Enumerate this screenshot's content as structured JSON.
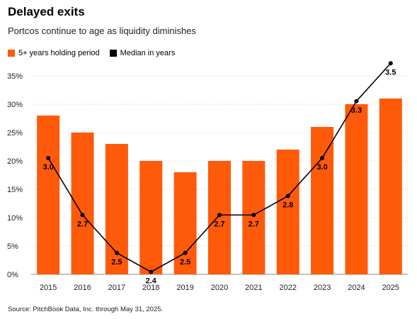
{
  "header": {
    "title": "Delayed exits",
    "subtitle": "Portcos continue to age as liquidity diminishes"
  },
  "legend": [
    {
      "label": "5+ years holding period",
      "color": "#ff5a0a"
    },
    {
      "label": "Median in years",
      "color": "#000000"
    }
  ],
  "source": "Source: PitchBook Data, Inc. through May 31, 2025.",
  "chart_data": {
    "type": "bar",
    "title": "Delayed exits",
    "subtitle": "Portcos continue to age as liquidity diminishes",
    "categories": [
      "2015",
      "2016",
      "2017",
      "2018",
      "2019",
      "2020",
      "2021",
      "2022",
      "2023",
      "2024",
      "2025"
    ],
    "y_ticks": [
      "0%",
      "5%",
      "10%",
      "15%",
      "20%",
      "25%",
      "30%",
      "35%"
    ],
    "ylim": [
      0,
      35
    ],
    "grid": true,
    "legend_position": "top-left",
    "series": [
      {
        "name": "5+ years holding period",
        "type": "bar",
        "color": "#ff5a0a",
        "values": [
          28,
          25,
          23,
          20,
          18,
          20,
          20,
          22,
          26,
          30,
          31
        ]
      },
      {
        "name": "Median in years",
        "type": "line",
        "color": "#000000",
        "values": [
          3.0,
          2.7,
          2.5,
          2.4,
          2.5,
          2.7,
          2.7,
          2.8,
          3.0,
          3.3,
          3.5
        ],
        "labels": [
          "3.0",
          "2.7",
          "2.5",
          "2.4",
          "2.5",
          "2.7",
          "2.7",
          "2.8",
          "3.0",
          "3.3",
          "3.5"
        ]
      }
    ]
  }
}
